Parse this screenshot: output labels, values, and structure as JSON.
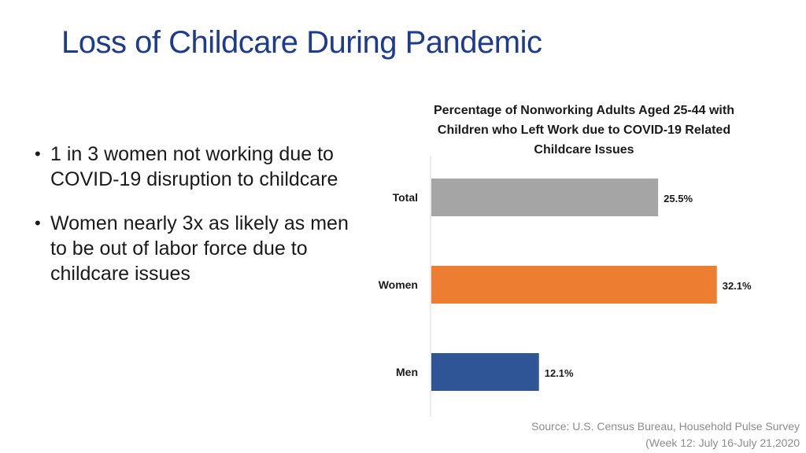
{
  "slide": {
    "title": "Loss of Childcare During Pandemic",
    "bullets": [
      "1 in 3 women not working due to COVID-19 disruption to childcare",
      "Women nearly 3x as likely as men to be out of labor force due to childcare issues"
    ],
    "source_line1": "Source: U.S. Census Bureau, Household Pulse Survey",
    "source_line2": "(Week 12: July 16-July 21,2020"
  },
  "chart_data": {
    "type": "bar",
    "orientation": "horizontal",
    "title": "Percentage of Nonworking Adults Aged 25-44 with Children who Left Work due to COVID-19 Related Childcare Issues",
    "categories": [
      "Total",
      "Women",
      "Men"
    ],
    "values": [
      25.5,
      32.1,
      12.1
    ],
    "data_labels": [
      "25.5%",
      "32.1%",
      "12.1%"
    ],
    "colors": [
      "#a5a5a5",
      "#ed7d31",
      "#2f5597"
    ],
    "xlim": [
      0,
      40
    ],
    "grid": false,
    "legend": "none"
  }
}
